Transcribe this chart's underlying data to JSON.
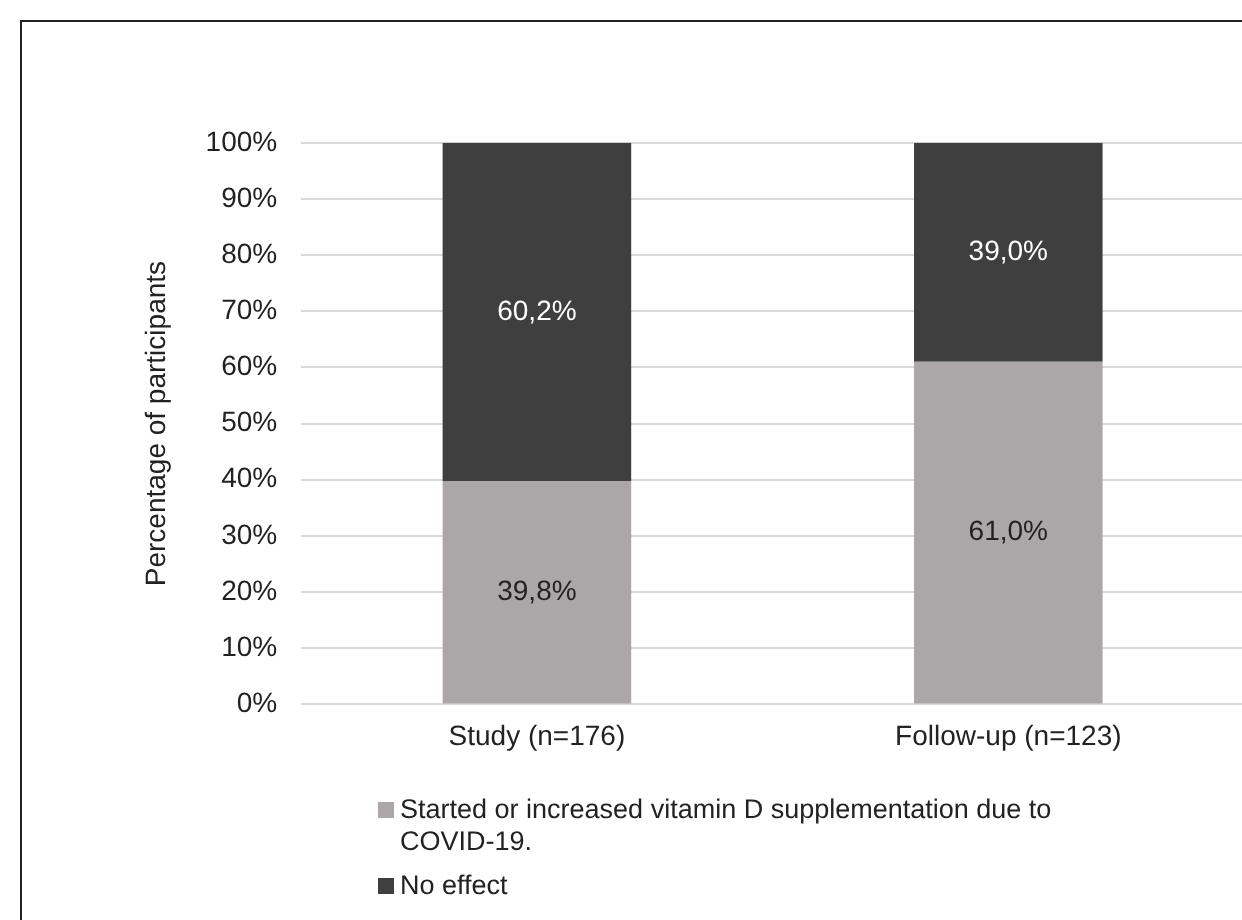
{
  "chart_data": {
    "type": "bar",
    "stacked": true,
    "ylabel": "Percentage of participants",
    "categories": [
      "Study (n=176)",
      "Follow-up (n=123)"
    ],
    "series": [
      {
        "name": "Started or increased vitamin D supplementation due to COVID-19.",
        "color": "#aba7a8",
        "values": [
          39.8,
          61.0
        ],
        "value_labels": [
          "39,8%",
          "61,0%"
        ]
      },
      {
        "name": "No effect",
        "color": "#3f3f3f",
        "values": [
          60.2,
          39.0
        ],
        "value_labels": [
          "60,2%",
          "39,0%"
        ]
      }
    ],
    "ylim": [
      0,
      100
    ],
    "yticks": [
      {
        "value": 0,
        "label": "0%"
      },
      {
        "value": 10,
        "label": "10%"
      },
      {
        "value": 20,
        "label": "20%"
      },
      {
        "value": 30,
        "label": "30%"
      },
      {
        "value": 40,
        "label": "40%"
      },
      {
        "value": 50,
        "label": "50%"
      },
      {
        "value": 60,
        "label": "60%"
      },
      {
        "value": 70,
        "label": "70%"
      },
      {
        "value": 80,
        "label": "80%"
      },
      {
        "value": 90,
        "label": "90%"
      },
      {
        "value": 100,
        "label": "100%"
      }
    ],
    "grid": "y",
    "legend": "bottom"
  }
}
